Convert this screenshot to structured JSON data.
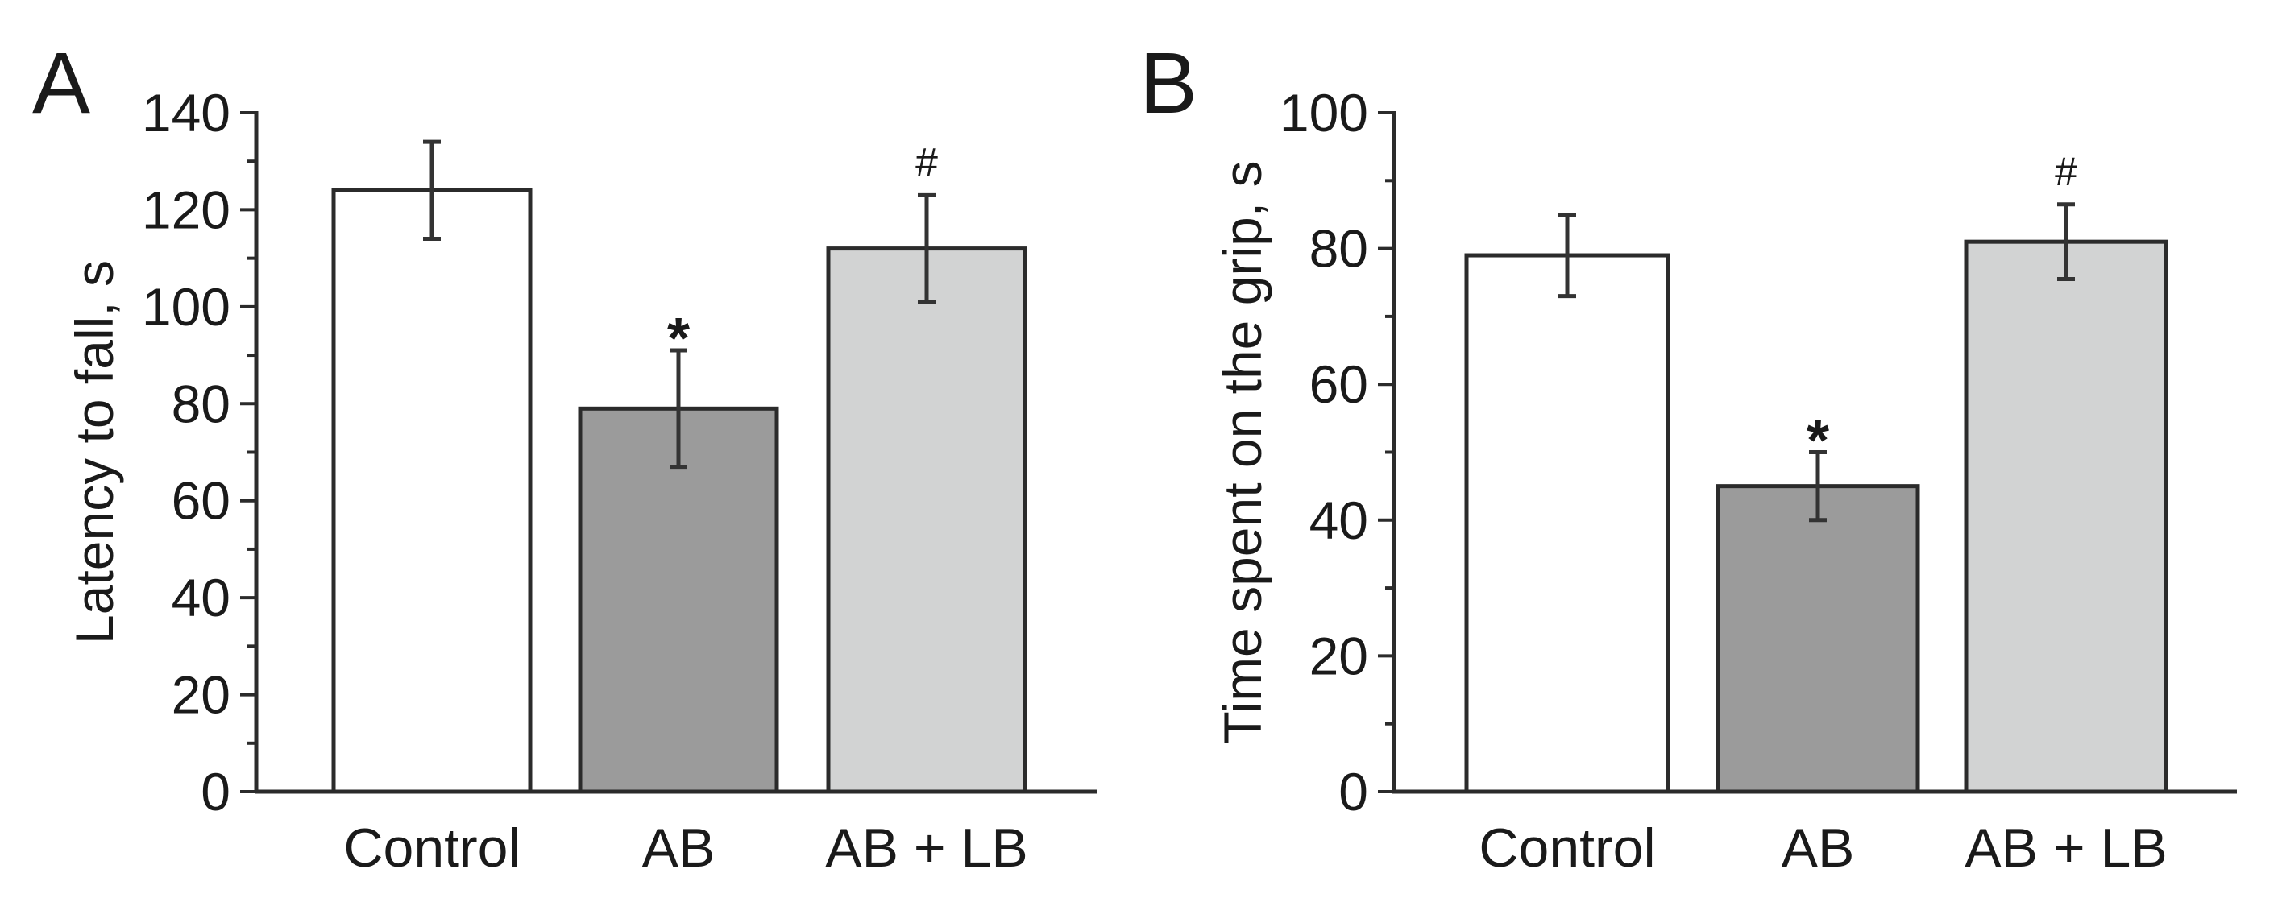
{
  "chart_data": [
    {
      "panel": "A",
      "type": "bar",
      "title": "",
      "xlabel": "",
      "ylabel": "Latency to fall, s",
      "ylim": [
        0,
        140
      ],
      "yticks": [
        0,
        20,
        40,
        60,
        80,
        100,
        120,
        140
      ],
      "categories": [
        "Control",
        "AB",
        "AB + LB"
      ],
      "values": [
        124,
        79,
        112
      ],
      "errors": [
        10,
        12,
        11
      ],
      "annotations": [
        "",
        "*",
        "#"
      ],
      "colors": [
        "#ffffff",
        "#9b9b9b",
        "#d2d3d3"
      ]
    },
    {
      "panel": "B",
      "type": "bar",
      "title": "",
      "xlabel": "",
      "ylabel": "Time spent on the grip, s",
      "ylim": [
        0,
        100
      ],
      "yticks": [
        0,
        20,
        40,
        60,
        80,
        100
      ],
      "categories": [
        "Control",
        "AB",
        "AB + LB"
      ],
      "values": [
        79,
        45,
        81
      ],
      "errors": [
        6,
        5,
        5.5
      ],
      "annotations": [
        "",
        "*",
        "#"
      ],
      "colors": [
        "#ffffff",
        "#9b9b9b",
        "#d2d3d3"
      ]
    }
  ]
}
